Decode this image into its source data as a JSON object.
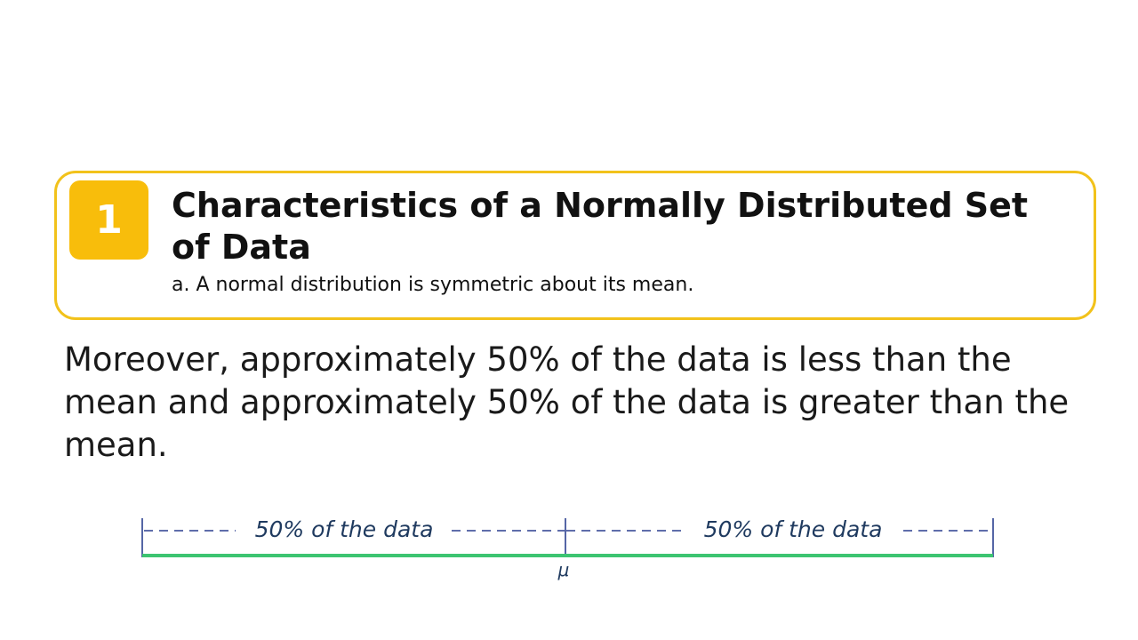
{
  "callout": {
    "number": "1",
    "title": "Characteristics of a Normally Distributed Set of Data",
    "subtitle": "a. A normal distribution is symmetric about its mean."
  },
  "paragraph": "Moreover, approximately 50% of the data is less than the mean and approximately 50% of the data is greater than the mean.",
  "diagram": {
    "left_label": "50% of the data",
    "right_label": "50% of the data",
    "center_label": "μ",
    "colors": {
      "line": "#3cc471",
      "ticks": "#2a3f8f",
      "dashes": "#2a3f8f"
    }
  }
}
